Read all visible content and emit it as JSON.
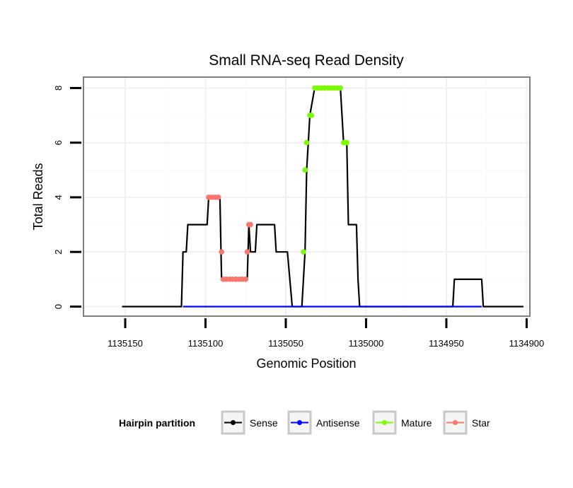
{
  "chart_data": {
    "type": "line",
    "title": "Small RNA-seq Read Density",
    "xlabel": "Genomic Position",
    "ylabel": "Total Reads",
    "xlim": [
      1135176,
      1134898
    ],
    "x_reversed": true,
    "ylim": [
      -0.35,
      8.4
    ],
    "xticks": [
      1135150,
      1135100,
      1135050,
      1135000,
      1134950,
      1134900
    ],
    "xtick_labels": [
      "1135150",
      "1135100",
      "1135050",
      "1135000",
      "1134950",
      "1134900"
    ],
    "yticks": [
      0,
      2,
      4,
      6,
      8
    ],
    "ytick_labels": [
      "0",
      "2",
      "4",
      "6",
      "8"
    ],
    "grid": true,
    "legend": {
      "title": "Hairpin partition",
      "placement": "bottom",
      "entries": [
        {
          "name": "Sense",
          "color": "#000000"
        },
        {
          "name": "Antisense",
          "color": "#0000ff"
        },
        {
          "name": "Mature",
          "color": "#7cfc00"
        },
        {
          "name": "Star",
          "color": "#f8766d"
        }
      ]
    },
    "series": [
      {
        "name": "Sense",
        "color": "#000000",
        "style": "line",
        "points": [
          [
            1135152,
            0
          ],
          [
            1135115,
            0
          ],
          [
            1135114,
            2
          ],
          [
            1135112,
            2
          ],
          [
            1135111,
            3
          ],
          [
            1135099,
            3
          ],
          [
            1135098,
            4
          ],
          [
            1135091,
            4
          ],
          [
            1135090,
            1
          ],
          [
            1135074,
            1
          ],
          [
            1135073,
            3
          ],
          [
            1135072,
            2
          ],
          [
            1135069,
            2
          ],
          [
            1135068,
            3
          ],
          [
            1135057,
            3
          ],
          [
            1135056,
            2
          ],
          [
            1135049,
            2
          ],
          [
            1135046,
            0
          ],
          [
            1135040,
            0
          ],
          [
            1135038,
            2
          ],
          [
            1135037,
            5
          ],
          [
            1135036,
            6
          ],
          [
            1135035,
            7
          ],
          [
            1135032,
            8
          ],
          [
            1135016,
            8
          ],
          [
            1135014,
            6
          ],
          [
            1135012,
            6
          ],
          [
            1135011,
            3
          ],
          [
            1135006,
            3
          ],
          [
            1135005,
            1
          ],
          [
            1135004,
            0
          ],
          [
            1134946,
            0
          ],
          [
            1134945,
            1
          ],
          [
            1134928,
            1
          ],
          [
            1134927,
            0
          ],
          [
            1134902,
            0
          ]
        ]
      },
      {
        "name": "Antisense",
        "color": "#0000ff",
        "style": "line",
        "points": [
          [
            1135114,
            0
          ],
          [
            1134928,
            0
          ]
        ]
      },
      {
        "name": "Mature",
        "color": "#7cfc00",
        "style": "points",
        "points": [
          [
            1135039,
            2
          ],
          [
            1135038,
            5
          ],
          [
            1135037,
            6
          ],
          [
            1135035,
            7
          ],
          [
            1135034,
            7
          ],
          [
            1135032,
            8
          ],
          [
            1135030,
            8
          ],
          [
            1135028,
            8
          ],
          [
            1135026,
            8
          ],
          [
            1135024,
            8
          ],
          [
            1135022,
            8
          ],
          [
            1135020,
            8
          ],
          [
            1135018,
            8
          ],
          [
            1135016,
            8
          ],
          [
            1135014,
            6
          ],
          [
            1135013,
            6
          ],
          [
            1135012,
            6
          ]
        ]
      },
      {
        "name": "Star",
        "color": "#f8766d",
        "style": "points",
        "points": [
          [
            1135098,
            4
          ],
          [
            1135096,
            4
          ],
          [
            1135094,
            4
          ],
          [
            1135092,
            4
          ],
          [
            1135090,
            2
          ],
          [
            1135089,
            1
          ],
          [
            1135087,
            1
          ],
          [
            1135085,
            1
          ],
          [
            1135083,
            1
          ],
          [
            1135081,
            1
          ],
          [
            1135079,
            1
          ],
          [
            1135077,
            1
          ],
          [
            1135075,
            1
          ],
          [
            1135074,
            2
          ],
          [
            1135073,
            3
          ],
          [
            1135072,
            3
          ]
        ]
      }
    ]
  }
}
